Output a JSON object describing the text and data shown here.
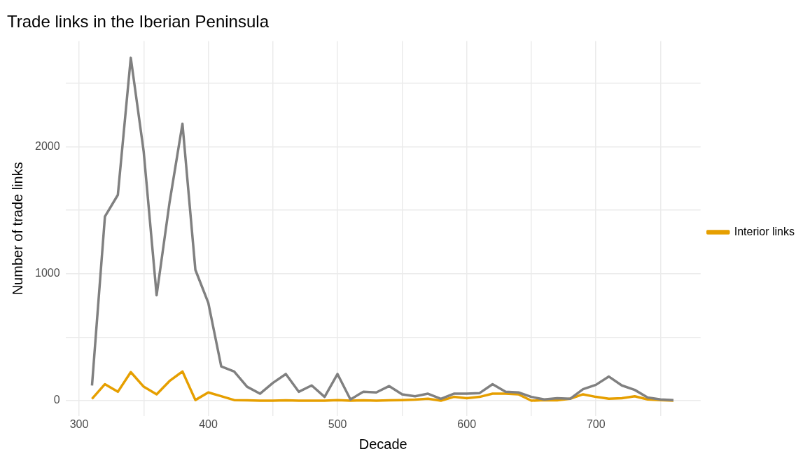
{
  "chart_data": {
    "type": "line",
    "title": "Trade links in the Iberian Peninsula",
    "xlabel": "Decade",
    "ylabel": "Number of trade links",
    "x": [
      310,
      320,
      330,
      340,
      350,
      360,
      370,
      380,
      390,
      400,
      410,
      420,
      430,
      440,
      450,
      460,
      470,
      480,
      490,
      500,
      510,
      520,
      530,
      540,
      550,
      560,
      570,
      580,
      590,
      600,
      610,
      620,
      630,
      640,
      650,
      660,
      670,
      680,
      690,
      700,
      710,
      720,
      730,
      740,
      750,
      760
    ],
    "series": [
      {
        "color": "#808080",
        "values": [
          120,
          1450,
          1620,
          2700,
          1960,
          830,
          1560,
          2180,
          1030,
          770,
          270,
          230,
          110,
          55,
          140,
          210,
          70,
          120,
          30,
          210,
          10,
          70,
          65,
          115,
          50,
          35,
          55,
          15,
          55,
          55,
          60,
          130,
          70,
          65,
          30,
          10,
          20,
          15,
          90,
          125,
          190,
          120,
          85,
          25,
          10,
          5
        ]
      },
      {
        "name": "Interior links",
        "color": "#e69f00",
        "values": [
          15,
          130,
          70,
          225,
          110,
          50,
          155,
          230,
          5,
          65,
          35,
          5,
          3,
          0,
          0,
          3,
          0,
          0,
          0,
          5,
          0,
          3,
          0,
          3,
          5,
          8,
          15,
          0,
          30,
          20,
          30,
          55,
          55,
          50,
          0,
          5,
          3,
          15,
          50,
          30,
          15,
          20,
          35,
          10,
          5,
          0
        ]
      }
    ],
    "xlim": [
      289.5,
      781
    ],
    "ylim": [
      -120,
      2830
    ],
    "xticks": [
      300,
      {
        "value": 350,
        "label": null
      },
      400,
      {
        "value": 450,
        "label": null
      },
      500,
      {
        "value": 550,
        "label": null
      },
      600,
      {
        "value": 650,
        "label": null
      },
      700,
      {
        "value": 750,
        "label": null
      }
    ],
    "yticks": [
      0,
      {
        "value": 500,
        "label": null
      },
      1000,
      {
        "value": 1500,
        "label": null
      },
      2000,
      {
        "value": 2500,
        "label": null
      }
    ],
    "grid": true,
    "legend": "right",
    "marker": "none",
    "line_style": "solid"
  }
}
